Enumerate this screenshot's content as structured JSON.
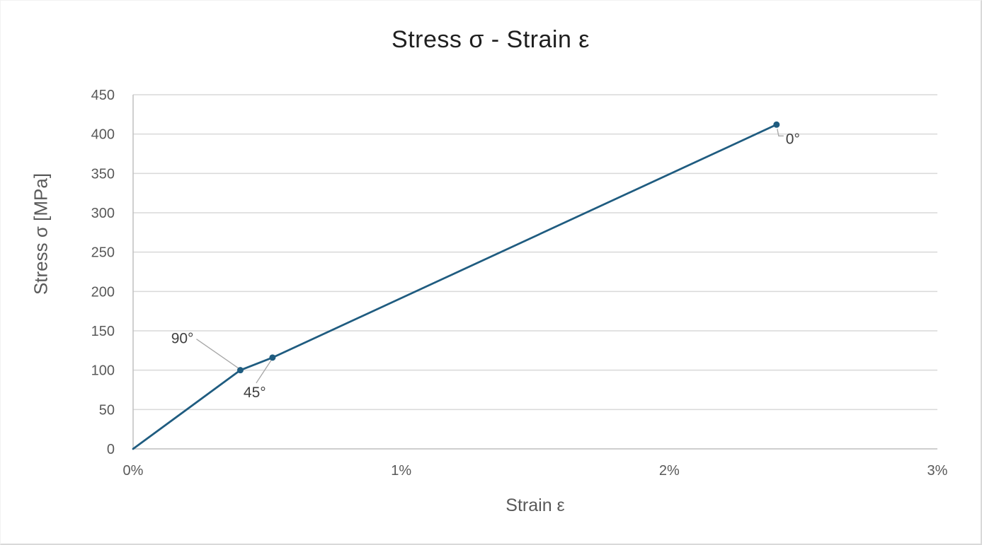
{
  "chart_data": {
    "type": "line",
    "title": "Stress σ - Strain ε",
    "xlabel": "Strain ε",
    "ylabel": "Stress σ [MPa]",
    "xlim": [
      0,
      0.03
    ],
    "ylim": [
      0,
      450
    ],
    "xticks": {
      "values": [
        0,
        0.01,
        0.02,
        0.03
      ],
      "labels": [
        "0%",
        "1%",
        "2%",
        "3%"
      ]
    },
    "yticks": {
      "values": [
        0,
        50,
        100,
        150,
        200,
        250,
        300,
        350,
        400,
        450
      ],
      "labels": [
        "0",
        "50",
        "100",
        "150",
        "200",
        "250",
        "300",
        "350",
        "400",
        "450"
      ]
    },
    "grid": "horizontal",
    "legend": "none",
    "series": [
      {
        "name": "stress-strain-curve",
        "color": "#1F5C80",
        "line_width": 2.75,
        "marker_radius": 4.5,
        "points": [
          {
            "x": 0.0,
            "y": 0,
            "marker": false
          },
          {
            "x": 0.004,
            "y": 100,
            "marker": true,
            "label": "90°",
            "label_anchor": "end",
            "label_offset": [
              -66,
              -38
            ],
            "leader": [
              [
                -62,
                -44
              ],
              [
                -3,
                -3
              ]
            ]
          },
          {
            "x": 0.0052,
            "y": 116,
            "marker": true,
            "label": "45°",
            "label_anchor": "start",
            "label_offset": [
              -41,
              56
            ],
            "leader": [
              [
                -2,
                4
              ],
              [
                -23,
                36
              ]
            ]
          },
          {
            "x": 0.024,
            "y": 412,
            "marker": true,
            "label": "0°",
            "label_anchor": "start",
            "label_offset": [
              13,
              27
            ],
            "leader": [
              [
                1,
                6
              ],
              [
                3,
                16
              ],
              [
                10,
                16
              ]
            ]
          }
        ]
      }
    ],
    "annotations": [
      "90°",
      "45°",
      "0°"
    ]
  },
  "styles": {
    "background": "#FFFFFF",
    "frame_border": "#D9D9D9",
    "gridline_color": "#D9D9D9",
    "axis_line_color": "#BFBFBF",
    "tick_label_color": "#595959",
    "axis_title_color": "#595959",
    "title_color": "#1F1F1F",
    "data_label_color": "#3F3F3F",
    "leader_line_color": "#A6A6A6"
  }
}
